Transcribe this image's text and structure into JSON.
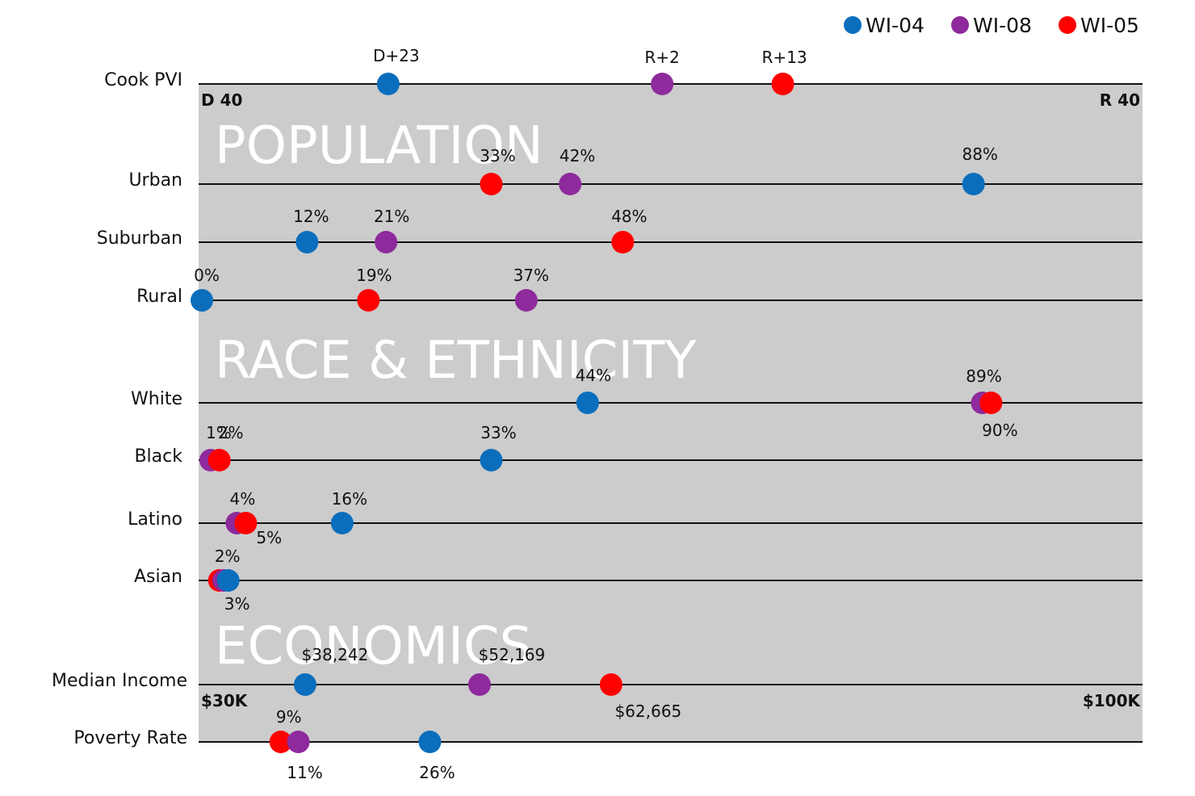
{
  "colors": {
    "WI-04": "#0a6ebd",
    "WI-08": "#8e2a9c",
    "WI-05": "#ff0000",
    "panel": "#cccccc"
  },
  "legend": [
    {
      "series": "WI-04",
      "label": "WI-04"
    },
    {
      "series": "WI-08",
      "label": "WI-08"
    },
    {
      "series": "WI-05",
      "label": "WI-05"
    }
  ],
  "sections": [
    {
      "title": "POPULATION"
    },
    {
      "title": "RACE & ETHNICITY"
    },
    {
      "title": "ECONOMICS"
    }
  ],
  "chart_data": {
    "type": "scatter",
    "title": "",
    "series_names": [
      "WI-04",
      "WI-08",
      "WI-05"
    ],
    "rows": [
      {
        "label": "Cook PVI",
        "scale": [
          -40,
          40
        ],
        "scale_labels": [
          "D 40",
          "R 40"
        ],
        "points": [
          {
            "series": "WI-04",
            "value": -23,
            "text": "D+23"
          },
          {
            "series": "WI-08",
            "value": 2,
            "text": "R+2"
          },
          {
            "series": "WI-05",
            "value": 13,
            "text": "R+13"
          }
        ]
      },
      {
        "label": "Urban",
        "scale": [
          0,
          100
        ],
        "points": [
          {
            "series": "WI-05",
            "value": 33,
            "text": "33%"
          },
          {
            "series": "WI-08",
            "value": 42,
            "text": "42%"
          },
          {
            "series": "WI-04",
            "value": 88,
            "text": "88%"
          }
        ]
      },
      {
        "label": "Suburban",
        "scale": [
          0,
          100
        ],
        "points": [
          {
            "series": "WI-04",
            "value": 12,
            "text": "12%"
          },
          {
            "series": "WI-08",
            "value": 21,
            "text": "21%"
          },
          {
            "series": "WI-05",
            "value": 48,
            "text": "48%"
          }
        ]
      },
      {
        "label": "Rural",
        "scale": [
          0,
          100
        ],
        "points": [
          {
            "series": "WI-04",
            "value": 0,
            "text": "0%"
          },
          {
            "series": "WI-05",
            "value": 19,
            "text": "19%"
          },
          {
            "series": "WI-08",
            "value": 37,
            "text": "37%"
          }
        ]
      },
      {
        "label": "White",
        "scale": [
          0,
          100
        ],
        "points": [
          {
            "series": "WI-04",
            "value": 44,
            "text": "44%"
          },
          {
            "series": "WI-08",
            "value": 89,
            "text": "89%"
          },
          {
            "series": "WI-05",
            "value": 90,
            "text": "90%"
          }
        ]
      },
      {
        "label": "Black",
        "scale": [
          0,
          100
        ],
        "points": [
          {
            "series": "WI-08",
            "value": 1,
            "text": "1%"
          },
          {
            "series": "WI-05",
            "value": 2,
            "text": "2%"
          },
          {
            "series": "WI-04",
            "value": 33,
            "text": "33%"
          }
        ]
      },
      {
        "label": "Latino",
        "scale": [
          0,
          100
        ],
        "points": [
          {
            "series": "WI-08",
            "value": 4,
            "text": "4%"
          },
          {
            "series": "WI-05",
            "value": 5,
            "text": "5%"
          },
          {
            "series": "WI-04",
            "value": 16,
            "text": "16%"
          }
        ]
      },
      {
        "label": "Asian",
        "scale": [
          0,
          100
        ],
        "points": [
          {
            "series": "WI-05",
            "value": 2,
            "text": "2%"
          },
          {
            "series": "WI-08",
            "value": 2.5,
            "text": ""
          },
          {
            "series": "WI-04",
            "value": 3,
            "text": "3%"
          }
        ]
      },
      {
        "label": "Median Income",
        "scale": [
          30000,
          100000
        ],
        "scale_labels": [
          "$30K",
          "$100K"
        ],
        "points": [
          {
            "series": "WI-04",
            "value": 38242,
            "text": "$38,242"
          },
          {
            "series": "WI-08",
            "value": 52169,
            "text": "$52,169"
          },
          {
            "series": "WI-05",
            "value": 62665,
            "text": "$62,665"
          }
        ]
      },
      {
        "label": "Poverty Rate",
        "scale": [
          0,
          100
        ],
        "points": [
          {
            "series": "WI-05",
            "value": 9,
            "text": "9%"
          },
          {
            "series": "WI-08",
            "value": 11,
            "text": "11%"
          },
          {
            "series": "WI-04",
            "value": 26,
            "text": "26%"
          }
        ]
      }
    ]
  }
}
